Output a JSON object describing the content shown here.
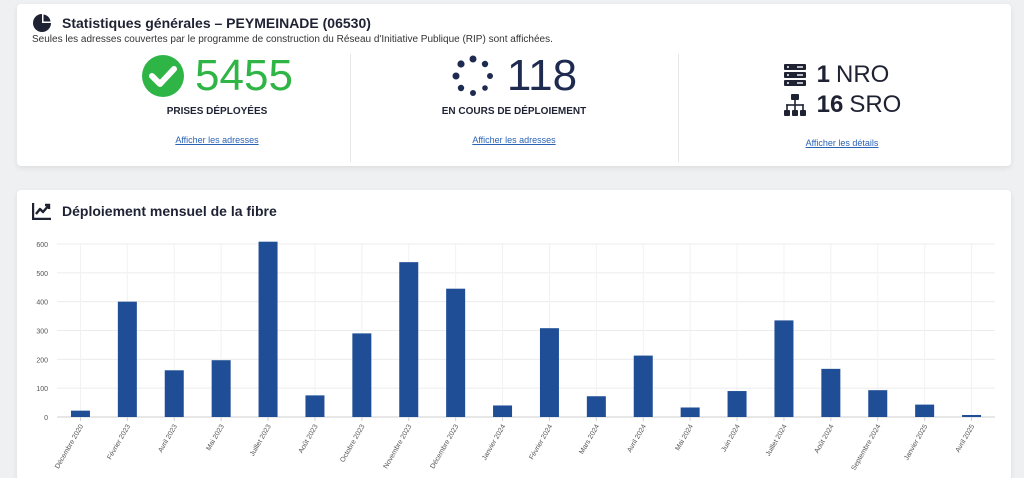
{
  "stats": {
    "title": "Statistiques générales – PEYMEINADE (06530)",
    "subtitle": "Seules les adresses couvertes par le programme de construction du Réseau d'Initiative Publique (RIP) sont affichées.",
    "deployed": {
      "value": "5455",
      "label": "PRISES DÉPLOYÉES",
      "link": "Afficher les adresses",
      "color": "#2fb545"
    },
    "in_progress": {
      "value": "118",
      "label": "EN COURS DE DÉPLOIEMENT",
      "link": "Afficher les adresses",
      "color": "#1e2a4f"
    },
    "infra": {
      "nro_count": "1",
      "nro_label": "NRO",
      "sro_count": "16",
      "sro_label": "SRO",
      "link": "Afficher les détails"
    }
  },
  "chart_section": {
    "title": "Déploiement mensuel de la fibre"
  },
  "chart_data": {
    "type": "bar",
    "title": "Déploiement mensuel de la fibre",
    "xlabel": "",
    "ylabel": "",
    "ylim": [
      0,
      600
    ],
    "yticks": [
      0,
      100,
      200,
      300,
      400,
      500,
      600
    ],
    "grid": true,
    "bar_color": "#1f4e96",
    "categories": [
      "Décembre 2020",
      "Février 2023",
      "Avril 2023",
      "Mai 2023",
      "Juillet 2023",
      "Août 2023",
      "Octobre 2023",
      "Novembre 2023",
      "Décembre 2023",
      "Janvier 2024",
      "Février 2024",
      "Mars 2024",
      "Avril 2024",
      "Mai 2024",
      "Juin 2024",
      "Juillet 2024",
      "Août 2024",
      "Septembre 2024",
      "Janvier 2025",
      "Avril 2025"
    ],
    "values": [
      22,
      400,
      162,
      197,
      608,
      75,
      290,
      537,
      445,
      40,
      308,
      72,
      213,
      33,
      90,
      335,
      167,
      93,
      43,
      7
    ]
  }
}
